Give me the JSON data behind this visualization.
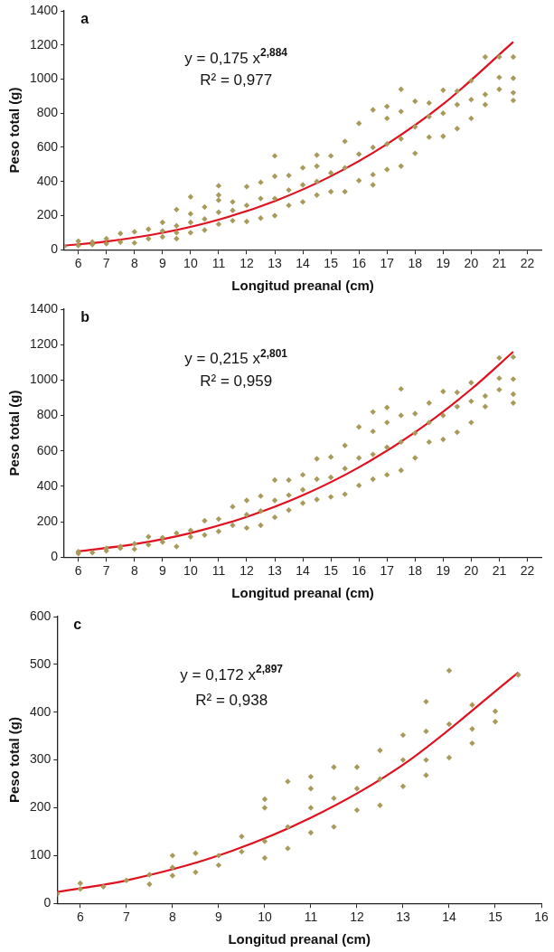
{
  "chart_data": [
    {
      "type": "scatter",
      "xlabel": "Longitud preanal (cm)",
      "ylabel": "Peso total (g)",
      "xlim": [
        5.5,
        22.5
      ],
      "xticks": [
        6,
        7,
        8,
        9,
        10,
        11,
        12,
        13,
        14,
        15,
        16,
        17,
        18,
        19,
        20,
        21,
        22
      ],
      "ylim": [
        0,
        1400
      ],
      "yticks": [
        0,
        200,
        400,
        600,
        800,
        1000,
        1200,
        1400
      ],
      "grid": false,
      "legend": false,
      "marker": "diamond",
      "annotations": [
        "a",
        "y = 0,175 x$^{2,884}$",
        "R² = 0,977"
      ],
      "series": [
        {
          "color": "#a89a5a",
          "x": [
            5.5,
            6,
            6,
            6.5,
            6.5,
            7,
            7,
            7.5,
            7.5,
            8,
            8,
            8.5,
            8.5,
            9,
            9,
            9,
            9.5,
            9.5,
            9.5,
            9.5,
            10,
            10,
            10,
            10,
            10.5,
            10.5,
            10.5,
            11,
            11,
            11,
            11,
            11,
            11.5,
            11.5,
            11.5,
            12,
            12,
            12,
            12.5,
            12.5,
            12.5,
            13,
            13,
            13,
            13,
            13.5,
            13.5,
            13.5,
            14,
            14,
            14,
            14.5,
            14.5,
            14.5,
            14.5,
            15,
            15,
            15,
            15.5,
            15.5,
            15.5,
            16,
            16,
            16,
            16.5,
            16.5,
            16.5,
            16.5,
            17,
            17,
            17,
            17,
            17.5,
            17.5,
            17.5,
            17.5,
            18,
            18,
            18,
            18.5,
            18.5,
            18.5,
            19,
            19,
            19,
            19.5,
            19.5,
            19.5,
            20,
            20,
            20,
            20.5,
            20.5,
            20.5,
            21,
            21,
            21,
            21.5,
            21.5,
            21.5,
            21.5
          ],
          "values": [
            20,
            25,
            50,
            30,
            45,
            35,
            65,
            45,
            95,
            40,
            105,
            65,
            120,
            75,
            110,
            160,
            65,
            100,
            140,
            235,
            100,
            160,
            210,
            310,
            115,
            180,
            250,
            150,
            220,
            290,
            320,
            375,
            170,
            230,
            280,
            165,
            260,
            370,
            185,
            300,
            395,
            200,
            300,
            430,
            550,
            260,
            350,
            435,
            280,
            380,
            480,
            320,
            400,
            490,
            555,
            340,
            450,
            550,
            340,
            480,
            635,
            405,
            560,
            740,
            380,
            440,
            600,
            820,
            470,
            620,
            770,
            840,
            490,
            650,
            810,
            940,
            565,
            720,
            870,
            660,
            780,
            860,
            665,
            800,
            935,
            710,
            850,
            930,
            770,
            880,
            990,
            850,
            910,
            1130,
            940,
            1010,
            1130,
            875,
            920,
            1005,
            1130
          ]
        },
        {
          "type": "line",
          "marker": "none",
          "color": "#e0101e",
          "x": [
            5.5,
            7,
            9,
            11,
            13,
            15,
            17,
            19,
            21.5
          ],
          "values": [
            24,
            48,
            99,
            176,
            285,
            431,
            619,
            853,
            1218
          ]
        }
      ]
    },
    {
      "type": "scatter",
      "xlabel": "Longitud preanal (cm)",
      "ylabel": "Peso total (g)",
      "xlim": [
        5.5,
        22.5
      ],
      "xticks": [
        6,
        7,
        8,
        9,
        10,
        11,
        12,
        13,
        14,
        15,
        16,
        17,
        18,
        19,
        20,
        21,
        22
      ],
      "ylim": [
        0,
        1400
      ],
      "yticks": [
        0,
        200,
        400,
        600,
        800,
        1000,
        1200,
        1400
      ],
      "grid": false,
      "legend": false,
      "marker": "diamond",
      "annotations": [
        "b",
        "y = 0,215 x$^{2,801}$",
        "R² = 0,959"
      ],
      "series": [
        {
          "color": "#a89a5a",
          "x": [
            6,
            6,
            6.5,
            7,
            7,
            7.5,
            7.5,
            8,
            8,
            8.5,
            8.5,
            9,
            9,
            9.5,
            9.5,
            10,
            10,
            10.5,
            10.5,
            11,
            11,
            11.5,
            11.5,
            12,
            12,
            12,
            12.5,
            12.5,
            12.5,
            13,
            13,
            13,
            13.5,
            13.5,
            13.5,
            14,
            14,
            14,
            14.5,
            14.5,
            14.5,
            15,
            15,
            15,
            15.5,
            15.5,
            15.5,
            16,
            16,
            16,
            16.5,
            16.5,
            16.5,
            16.5,
            17,
            17,
            17,
            17,
            17.5,
            17.5,
            17.5,
            17.5,
            18,
            18,
            18,
            18.5,
            18.5,
            18.5,
            19,
            19,
            19,
            19.5,
            19.5,
            19.5,
            20,
            20,
            20,
            20.5,
            20.5,
            21,
            21,
            21,
            21.5,
            21.5,
            21.5,
            21.5
          ],
          "values": [
            20,
            30,
            25,
            35,
            50,
            50,
            60,
            45,
            75,
            70,
            115,
            85,
            110,
            60,
            135,
            115,
            150,
            125,
            205,
            145,
            215,
            180,
            285,
            165,
            240,
            320,
            180,
            260,
            345,
            225,
            320,
            435,
            265,
            350,
            435,
            305,
            380,
            465,
            325,
            440,
            555,
            340,
            450,
            565,
            355,
            500,
            630,
            405,
            560,
            735,
            440,
            580,
            710,
            820,
            465,
            620,
            760,
            845,
            490,
            650,
            800,
            950,
            560,
            700,
            810,
            650,
            760,
            870,
            665,
            800,
            935,
            705,
            850,
            930,
            760,
            880,
            985,
            850,
            910,
            945,
            1010,
            1125,
            870,
            920,
            1005,
            1130
          ]
        },
        {
          "type": "line",
          "marker": "none",
          "color": "#e0101e",
          "x": [
            6,
            8,
            10,
            12,
            14,
            16,
            18,
            20,
            21.5
          ],
          "values": [
            33,
            73,
            136,
            227,
            349,
            507,
            705,
            948,
            1160
          ]
        }
      ]
    },
    {
      "type": "scatter",
      "xlabel": "Longitud preanal (cm)",
      "ylabel": "Peso total (g)",
      "xlim": [
        5.5,
        16
      ],
      "xticks": [
        6,
        7,
        8,
        9,
        10,
        11,
        12,
        13,
        14,
        15,
        16
      ],
      "ylim": [
        0,
        600
      ],
      "yticks": [
        0,
        100,
        200,
        300,
        400,
        500,
        600
      ],
      "grid": false,
      "legend": false,
      "marker": "diamond",
      "annotations": [
        "c",
        "y = 0,172 x$^{2,897}$",
        "R² = 0,938"
      ],
      "series": [
        {
          "color": "#a89a5a",
          "x": [
            5.5,
            6,
            6,
            6.5,
            7,
            7.5,
            7.5,
            8,
            8,
            8,
            8.5,
            8.5,
            9,
            9,
            9.5,
            9.5,
            10,
            10,
            10,
            10,
            10.5,
            10.5,
            10.5,
            11,
            11,
            11,
            11,
            11.5,
            11.5,
            11.5,
            12,
            12,
            12,
            12.5,
            12.5,
            12.5,
            13,
            13,
            13,
            13.5,
            13.5,
            13.5,
            13.5,
            14,
            14,
            14,
            14.5,
            14.5,
            14.5,
            15,
            15,
            15.5
          ],
          "values": [
            20,
            30,
            42,
            35,
            48,
            40,
            60,
            58,
            75,
            100,
            65,
            105,
            80,
            100,
            108,
            140,
            95,
            130,
            200,
            218,
            115,
            160,
            255,
            148,
            200,
            240,
            265,
            160,
            220,
            285,
            195,
            240,
            285,
            205,
            260,
            320,
            245,
            300,
            352,
            268,
            300,
            360,
            422,
            305,
            375,
            487,
            335,
            365,
            415,
            380,
            402,
            478
          ]
        },
        {
          "type": "line",
          "marker": "none",
          "color": "#e0101e",
          "x": [
            5.5,
            7,
            9,
            11,
            13,
            15.5
          ],
          "values": [
            24,
            48,
            100,
            179,
            290,
            483
          ]
        }
      ]
    }
  ]
}
